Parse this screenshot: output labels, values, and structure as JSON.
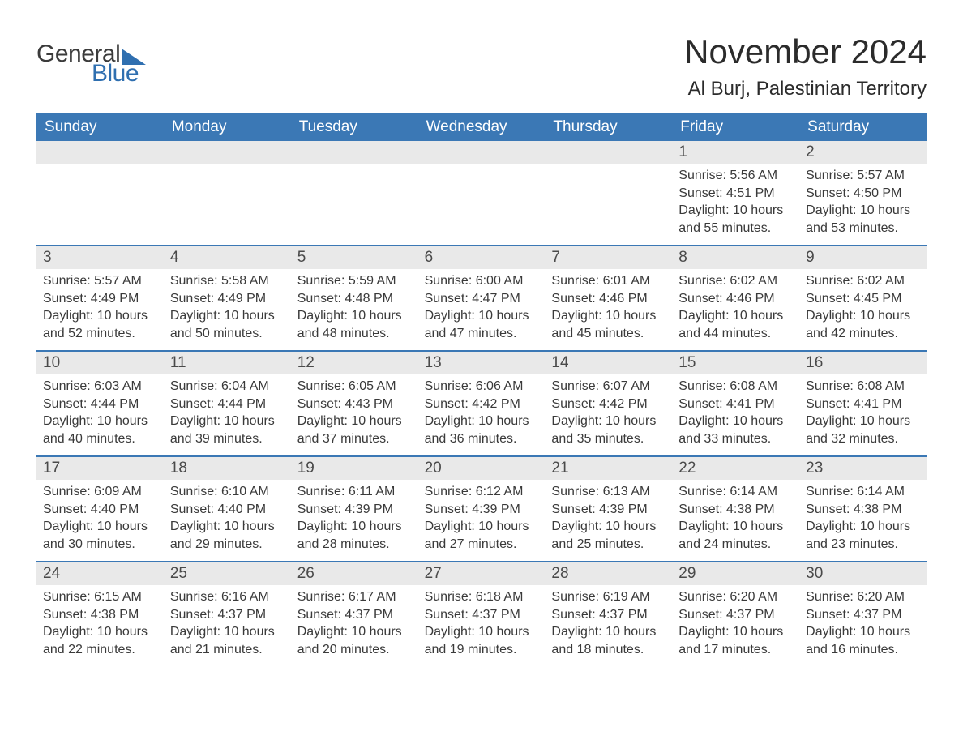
{
  "logo": {
    "word1": "General",
    "word2": "Blue"
  },
  "header": {
    "month_year": "November 2024",
    "location": "Al Burj, Palestinian Territory"
  },
  "colors": {
    "header_bg": "#3b78b5",
    "week_border": "#3b78b5",
    "daynum_bg": "#e9e9e9",
    "text": "#3a3a3a",
    "logo_blue": "#2f6fb0",
    "page_bg": "#ffffff"
  },
  "typography": {
    "month_year_fontsize": 42,
    "location_fontsize": 24,
    "dow_fontsize": 19,
    "daynum_fontsize": 19,
    "detail_fontsize": 16,
    "font_family": "Arial"
  },
  "calendar": {
    "type": "calendar-table",
    "columns": [
      "Sunday",
      "Monday",
      "Tuesday",
      "Wednesday",
      "Thursday",
      "Friday",
      "Saturday"
    ],
    "start_day_index": 5,
    "days": [
      {
        "n": 1,
        "sunrise": "5:56 AM",
        "sunset": "4:51 PM",
        "daylight": "10 hours and 55 minutes."
      },
      {
        "n": 2,
        "sunrise": "5:57 AM",
        "sunset": "4:50 PM",
        "daylight": "10 hours and 53 minutes."
      },
      {
        "n": 3,
        "sunrise": "5:57 AM",
        "sunset": "4:49 PM",
        "daylight": "10 hours and 52 minutes."
      },
      {
        "n": 4,
        "sunrise": "5:58 AM",
        "sunset": "4:49 PM",
        "daylight": "10 hours and 50 minutes."
      },
      {
        "n": 5,
        "sunrise": "5:59 AM",
        "sunset": "4:48 PM",
        "daylight": "10 hours and 48 minutes."
      },
      {
        "n": 6,
        "sunrise": "6:00 AM",
        "sunset": "4:47 PM",
        "daylight": "10 hours and 47 minutes."
      },
      {
        "n": 7,
        "sunrise": "6:01 AM",
        "sunset": "4:46 PM",
        "daylight": "10 hours and 45 minutes."
      },
      {
        "n": 8,
        "sunrise": "6:02 AM",
        "sunset": "4:46 PM",
        "daylight": "10 hours and 44 minutes."
      },
      {
        "n": 9,
        "sunrise": "6:02 AM",
        "sunset": "4:45 PM",
        "daylight": "10 hours and 42 minutes."
      },
      {
        "n": 10,
        "sunrise": "6:03 AM",
        "sunset": "4:44 PM",
        "daylight": "10 hours and 40 minutes."
      },
      {
        "n": 11,
        "sunrise": "6:04 AM",
        "sunset": "4:44 PM",
        "daylight": "10 hours and 39 minutes."
      },
      {
        "n": 12,
        "sunrise": "6:05 AM",
        "sunset": "4:43 PM",
        "daylight": "10 hours and 37 minutes."
      },
      {
        "n": 13,
        "sunrise": "6:06 AM",
        "sunset": "4:42 PM",
        "daylight": "10 hours and 36 minutes."
      },
      {
        "n": 14,
        "sunrise": "6:07 AM",
        "sunset": "4:42 PM",
        "daylight": "10 hours and 35 minutes."
      },
      {
        "n": 15,
        "sunrise": "6:08 AM",
        "sunset": "4:41 PM",
        "daylight": "10 hours and 33 minutes."
      },
      {
        "n": 16,
        "sunrise": "6:08 AM",
        "sunset": "4:41 PM",
        "daylight": "10 hours and 32 minutes."
      },
      {
        "n": 17,
        "sunrise": "6:09 AM",
        "sunset": "4:40 PM",
        "daylight": "10 hours and 30 minutes."
      },
      {
        "n": 18,
        "sunrise": "6:10 AM",
        "sunset": "4:40 PM",
        "daylight": "10 hours and 29 minutes."
      },
      {
        "n": 19,
        "sunrise": "6:11 AM",
        "sunset": "4:39 PM",
        "daylight": "10 hours and 28 minutes."
      },
      {
        "n": 20,
        "sunrise": "6:12 AM",
        "sunset": "4:39 PM",
        "daylight": "10 hours and 27 minutes."
      },
      {
        "n": 21,
        "sunrise": "6:13 AM",
        "sunset": "4:39 PM",
        "daylight": "10 hours and 25 minutes."
      },
      {
        "n": 22,
        "sunrise": "6:14 AM",
        "sunset": "4:38 PM",
        "daylight": "10 hours and 24 minutes."
      },
      {
        "n": 23,
        "sunrise": "6:14 AM",
        "sunset": "4:38 PM",
        "daylight": "10 hours and 23 minutes."
      },
      {
        "n": 24,
        "sunrise": "6:15 AM",
        "sunset": "4:38 PM",
        "daylight": "10 hours and 22 minutes."
      },
      {
        "n": 25,
        "sunrise": "6:16 AM",
        "sunset": "4:37 PM",
        "daylight": "10 hours and 21 minutes."
      },
      {
        "n": 26,
        "sunrise": "6:17 AM",
        "sunset": "4:37 PM",
        "daylight": "10 hours and 20 minutes."
      },
      {
        "n": 27,
        "sunrise": "6:18 AM",
        "sunset": "4:37 PM",
        "daylight": "10 hours and 19 minutes."
      },
      {
        "n": 28,
        "sunrise": "6:19 AM",
        "sunset": "4:37 PM",
        "daylight": "10 hours and 18 minutes."
      },
      {
        "n": 29,
        "sunrise": "6:20 AM",
        "sunset": "4:37 PM",
        "daylight": "10 hours and 17 minutes."
      },
      {
        "n": 30,
        "sunrise": "6:20 AM",
        "sunset": "4:37 PM",
        "daylight": "10 hours and 16 minutes."
      }
    ],
    "labels": {
      "sunrise": "Sunrise: ",
      "sunset": "Sunset: ",
      "daylight": "Daylight: "
    }
  }
}
